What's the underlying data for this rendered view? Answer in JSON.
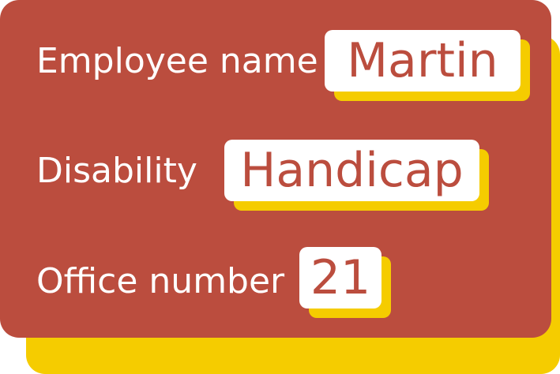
{
  "colors": {
    "card": "#bb4d3e",
    "shadow": "#f5cc00",
    "chip": "#ffffff",
    "label_text": "#ffffff",
    "value_text": "#bb4d3e"
  },
  "fields": [
    {
      "label": "Employee name",
      "value": "Martin"
    },
    {
      "label": "Disability",
      "value": "Handicap"
    },
    {
      "label": "Office number",
      "value": "21"
    }
  ]
}
